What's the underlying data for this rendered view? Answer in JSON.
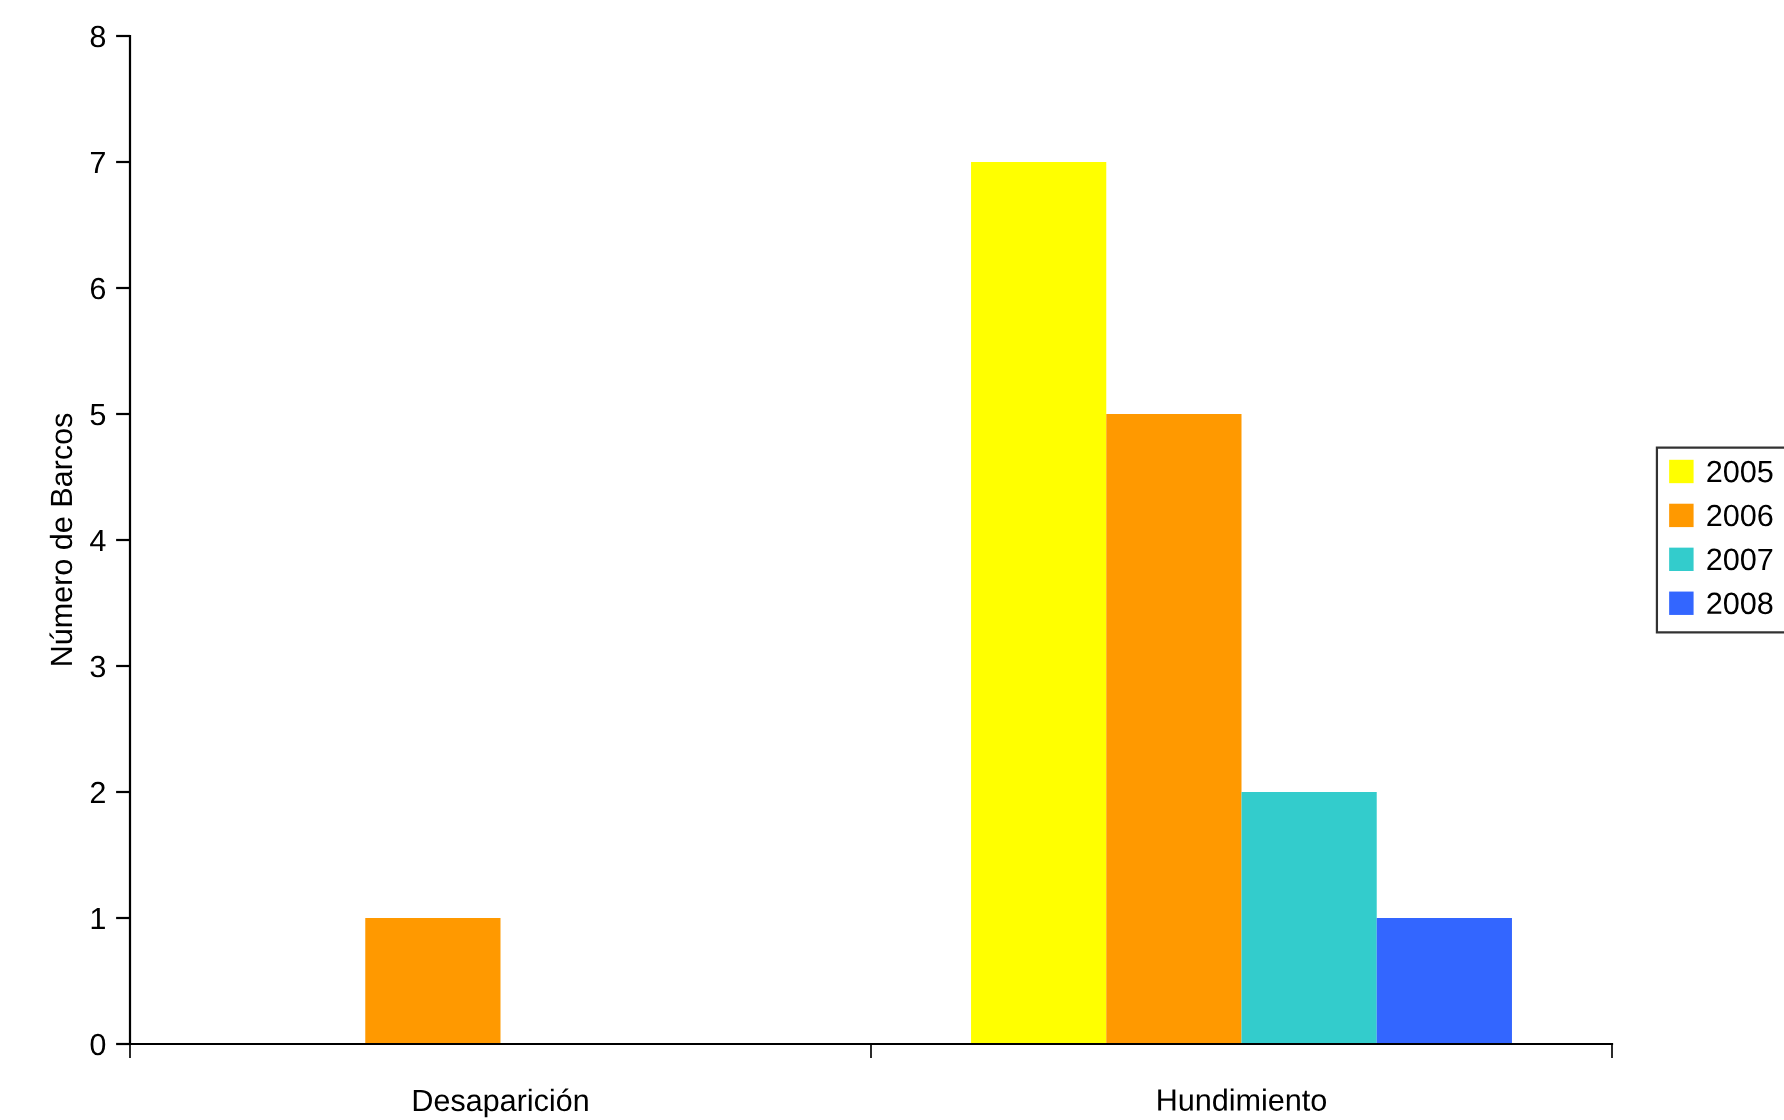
{
  "chart_data": {
    "type": "bar",
    "ylabel": "Número de Barcos",
    "categories": [
      "Desaparición",
      "Hundimiento"
    ],
    "series": [
      {
        "name": "2005",
        "color": "#ffff00",
        "values": [
          0,
          7
        ]
      },
      {
        "name": "2006",
        "color": "#ff9900",
        "values": [
          1,
          5
        ]
      },
      {
        "name": "2007",
        "color": "#33cccc",
        "values": [
          0,
          2
        ]
      },
      {
        "name": "2008",
        "color": "#3366ff",
        "values": [
          0,
          1
        ]
      }
    ],
    "ylim": [
      0,
      8
    ],
    "yticks": [
      0,
      1,
      2,
      3,
      4,
      5,
      6,
      7,
      8
    ],
    "grid": false,
    "legend": "right"
  }
}
